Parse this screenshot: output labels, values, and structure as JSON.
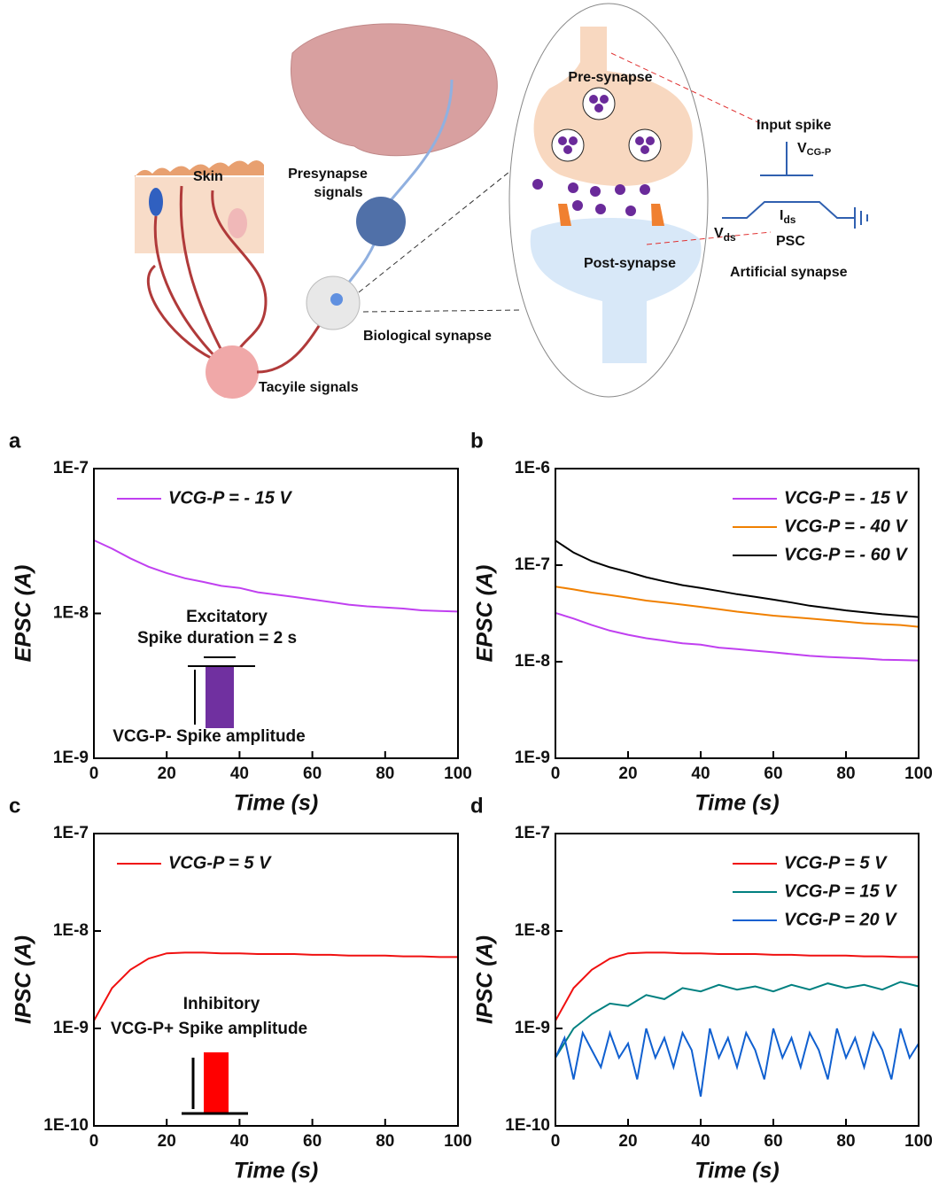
{
  "diagram": {
    "skin": "Skin",
    "presynapse_signals": [
      "Presynapse",
      "signals"
    ],
    "biological_synapse": "Biological synapse",
    "tactile_signals": "Tacyile signals",
    "pre_synapse": "Pre-synapse",
    "post_synapse": "Post-synapse",
    "input_spike": "Input spike",
    "vcgp": {
      "main": "V",
      "sub": "CG-P"
    },
    "ids": {
      "main": "I",
      "sub": "ds"
    },
    "vds": {
      "main": "V",
      "sub": "ds"
    },
    "psc": "PSC",
    "artificial_synapse": "Artificial synapse"
  },
  "chart_data": [
    {
      "type": "line",
      "panel_label": "a",
      "xlabel": "Time (s)",
      "ylabel": "EPSC (A)",
      "log_y": true,
      "legend": "upper left",
      "xlim": [
        0,
        100
      ],
      "xticks": [
        0,
        20,
        40,
        60,
        80,
        100
      ],
      "ylim": [
        1e-09,
        1e-07
      ],
      "yticks": [
        {
          "value": 1e-09,
          "label": "1E-9"
        },
        {
          "value": 1e-08,
          "label": "1E-8"
        },
        {
          "value": 1e-07,
          "label": "1E-7"
        }
      ],
      "x": [
        0,
        5,
        10,
        15,
        20,
        25,
        30,
        35,
        40,
        45,
        50,
        55,
        60,
        65,
        70,
        75,
        80,
        85,
        90,
        95,
        100
      ],
      "series": [
        {
          "name": "VCG-P = - 15 V",
          "color": "#c040f0",
          "values": [
            3.2e-08,
            2.8e-08,
            2.4e-08,
            2.1e-08,
            1.9e-08,
            1.75e-08,
            1.65e-08,
            1.55e-08,
            1.5e-08,
            1.4e-08,
            1.35e-08,
            1.3e-08,
            1.25e-08,
            1.2e-08,
            1.15e-08,
            1.12e-08,
            1.1e-08,
            1.08e-08,
            1.05e-08,
            1.04e-08,
            1.03e-08
          ]
        }
      ],
      "annotations": [
        "Excitatory",
        "Spike duration = 2 s",
        "VCG-P- Spike amplitude"
      ],
      "inset_color": "#7030a0"
    },
    {
      "type": "line",
      "panel_label": "b",
      "xlabel": "Time (s)",
      "ylabel": "EPSC (A)",
      "log_y": true,
      "legend": "upper right",
      "xlim": [
        0,
        100
      ],
      "xticks": [
        0,
        20,
        40,
        60,
        80,
        100
      ],
      "ylim": [
        1e-09,
        1e-06
      ],
      "yticks": [
        {
          "value": 1e-09,
          "label": "1E-9"
        },
        {
          "value": 1e-08,
          "label": "1E-8"
        },
        {
          "value": 1e-07,
          "label": "1E-7"
        },
        {
          "value": 1e-06,
          "label": "1E-6"
        }
      ],
      "x": [
        0,
        5,
        10,
        15,
        20,
        25,
        30,
        35,
        40,
        45,
        50,
        55,
        60,
        65,
        70,
        75,
        80,
        85,
        90,
        95,
        100
      ],
      "series": [
        {
          "name": "VCG-P = - 15 V",
          "color": "#c040f0",
          "values": [
            3.2e-08,
            2.8e-08,
            2.4e-08,
            2.1e-08,
            1.9e-08,
            1.75e-08,
            1.65e-08,
            1.55e-08,
            1.5e-08,
            1.4e-08,
            1.35e-08,
            1.3e-08,
            1.25e-08,
            1.2e-08,
            1.15e-08,
            1.12e-08,
            1.1e-08,
            1.08e-08,
            1.05e-08,
            1.04e-08,
            1.03e-08
          ]
        },
        {
          "name": "VCG-P = - 40 V",
          "color": "#f08000",
          "values": [
            6e-08,
            5.6e-08,
            5.2e-08,
            4.9e-08,
            4.6e-08,
            4.3e-08,
            4.1e-08,
            3.9e-08,
            3.7e-08,
            3.5e-08,
            3.3e-08,
            3.15e-08,
            3e-08,
            2.9e-08,
            2.8e-08,
            2.7e-08,
            2.6e-08,
            2.5e-08,
            2.45e-08,
            2.4e-08,
            2.3e-08
          ]
        },
        {
          "name": "VCG-P = - 60 V",
          "color": "#000000",
          "values": [
            1.8e-07,
            1.35e-07,
            1.1e-07,
            9.5e-08,
            8.5e-08,
            7.5e-08,
            6.8e-08,
            6.2e-08,
            5.8e-08,
            5.4e-08,
            5e-08,
            4.7e-08,
            4.4e-08,
            4.1e-08,
            3.8e-08,
            3.6e-08,
            3.4e-08,
            3.25e-08,
            3.1e-08,
            3e-08,
            2.9e-08
          ]
        }
      ]
    },
    {
      "type": "line",
      "panel_label": "c",
      "xlabel": "Time (s)",
      "ylabel": "IPSC (A)",
      "log_y": true,
      "legend": "upper left",
      "xlim": [
        0,
        100
      ],
      "xticks": [
        0,
        20,
        40,
        60,
        80,
        100
      ],
      "ylim": [
        1e-10,
        1e-07
      ],
      "yticks": [
        {
          "value": 1e-10,
          "label": "1E-10"
        },
        {
          "value": 1e-09,
          "label": "1E-9"
        },
        {
          "value": 1e-08,
          "label": "1E-8"
        },
        {
          "value": 1e-07,
          "label": "1E-7"
        }
      ],
      "x": [
        0,
        5,
        10,
        15,
        20,
        25,
        30,
        35,
        40,
        45,
        50,
        55,
        60,
        65,
        70,
        75,
        80,
        85,
        90,
        95,
        100
      ],
      "series": [
        {
          "name": "VCG-P = 5 V",
          "color": "#f01010",
          "values": [
            1.2e-09,
            2.6e-09,
            4e-09,
            5.2e-09,
            5.9e-09,
            6e-09,
            6e-09,
            5.9e-09,
            5.9e-09,
            5.8e-09,
            5.8e-09,
            5.8e-09,
            5.7e-09,
            5.7e-09,
            5.6e-09,
            5.6e-09,
            5.6e-09,
            5.5e-09,
            5.5e-09,
            5.4e-09,
            5.4e-09
          ]
        }
      ],
      "annotations": [
        "Inhibitory",
        "VCG-P+ Spike amplitude"
      ],
      "inset_color": "#ff0000"
    },
    {
      "type": "line",
      "panel_label": "d",
      "xlabel": "Time (s)",
      "ylabel": "IPSC (A)",
      "log_y": true,
      "legend": "upper right",
      "xlim": [
        0,
        100
      ],
      "xticks": [
        0,
        20,
        40,
        60,
        80,
        100
      ],
      "ylim": [
        1e-10,
        1e-07
      ],
      "yticks": [
        {
          "value": 1e-10,
          "label": "1E-10"
        },
        {
          "value": 1e-09,
          "label": "1E-9"
        },
        {
          "value": 1e-08,
          "label": "1E-8"
        },
        {
          "value": 1e-07,
          "label": "1E-7"
        }
      ],
      "x": [
        0,
        5,
        10,
        15,
        20,
        25,
        30,
        35,
        40,
        45,
        50,
        55,
        60,
        65,
        70,
        75,
        80,
        85,
        90,
        95,
        100
      ],
      "series": [
        {
          "name": "VCG-P = 5 V",
          "color": "#f01010",
          "values": [
            1.2e-09,
            2.6e-09,
            4e-09,
            5.2e-09,
            5.9e-09,
            6e-09,
            6e-09,
            5.9e-09,
            5.9e-09,
            5.8e-09,
            5.8e-09,
            5.8e-09,
            5.7e-09,
            5.7e-09,
            5.6e-09,
            5.6e-09,
            5.6e-09,
            5.5e-09,
            5.5e-09,
            5.4e-09,
            5.4e-09
          ]
        },
        {
          "name": "VCG-P = 15 V",
          "color": "#008080",
          "values": [
            5e-10,
            1e-09,
            1.4e-09,
            1.8e-09,
            1.7e-09,
            2.2e-09,
            2e-09,
            2.6e-09,
            2.4e-09,
            2.8e-09,
            2.5e-09,
            2.7e-09,
            2.4e-09,
            2.8e-09,
            2.5e-09,
            2.9e-09,
            2.6e-09,
            2.8e-09,
            2.5e-09,
            3e-09,
            2.7e-09
          ]
        },
        {
          "name": "VCG-P = 20 V",
          "color": "#1060d0",
          "x": [
            0,
            2.5,
            5,
            7.5,
            10,
            12.5,
            15,
            17.5,
            20,
            22.5,
            25,
            27.5,
            30,
            32.5,
            35,
            37.5,
            40,
            42.5,
            45,
            47.5,
            50,
            52.5,
            55,
            57.5,
            60,
            62.5,
            65,
            67.5,
            70,
            72.5,
            75,
            77.5,
            80,
            82.5,
            85,
            87.5,
            90,
            92.5,
            95,
            97.5,
            100
          ],
          "values": [
            5e-10,
            8e-10,
            3e-10,
            9e-10,
            6e-10,
            4e-10,
            9e-10,
            5e-10,
            7e-10,
            3e-10,
            1e-09,
            5e-10,
            8e-10,
            4e-10,
            9e-10,
            6e-10,
            2e-10,
            1e-09,
            5e-10,
            8e-10,
            4e-10,
            9e-10,
            6e-10,
            3e-10,
            1e-09,
            5e-10,
            8e-10,
            4e-10,
            9e-10,
            6e-10,
            3e-10,
            1e-09,
            5e-10,
            8e-10,
            4e-10,
            9e-10,
            6e-10,
            3e-10,
            1e-09,
            5e-10,
            7e-10
          ]
        }
      ]
    }
  ]
}
